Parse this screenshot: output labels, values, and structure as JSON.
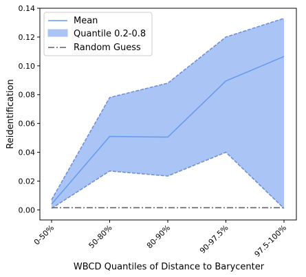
{
  "chart_data": {
    "type": "line",
    "xlabel": "WBCD Quantiles of Distance to Barycenter",
    "ylabel": "Reidentification",
    "categories": [
      "0-50%",
      "50-80%",
      "80-90%",
      "90-97.5%",
      "97.5-100%"
    ],
    "ylim": [
      -0.007,
      0.14
    ],
    "yticks": [
      0.0,
      0.02,
      0.04,
      0.06,
      0.08,
      0.1,
      0.12,
      0.14
    ],
    "ytick_labels": [
      "0.00",
      "0.02",
      "0.04",
      "0.06",
      "0.08",
      "0.10",
      "0.12",
      "0.14"
    ],
    "series": [
      {
        "name": "Mean",
        "values": [
          0.004,
          0.051,
          0.0505,
          0.0895,
          0.1065
        ]
      },
      {
        "name": "Quantile 0.2-0.8",
        "lower": [
          0.001,
          0.027,
          0.0235,
          0.04,
          0.001
        ],
        "upper": [
          0.007,
          0.078,
          0.088,
          0.12,
          0.133
        ]
      },
      {
        "name": "Random Guess",
        "values": [
          0.0015,
          0.0015,
          0.0015,
          0.0015,
          0.0015
        ]
      }
    ],
    "legend_position": "upper-left",
    "grid": false,
    "colors": {
      "mean": "#6699ee",
      "band_fill": "#aac4f5",
      "band_edge": "#6f8fd6",
      "random": "#777777"
    }
  }
}
